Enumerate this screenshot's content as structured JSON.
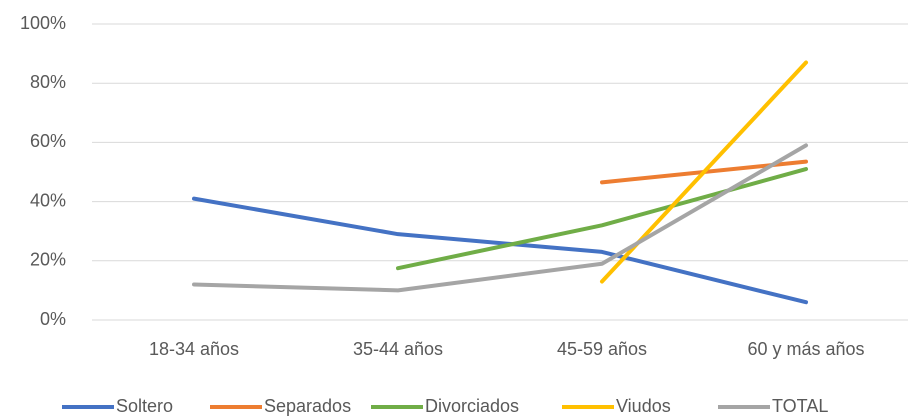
{
  "chart_data": {
    "type": "line",
    "categories": [
      "18-34 años",
      "35-44 años",
      "45-59 años",
      "60 y más años"
    ],
    "series": [
      {
        "name": "Soltero",
        "color": "#4472c4",
        "values": [
          41,
          29,
          23,
          6
        ]
      },
      {
        "name": "Separados",
        "color": "#ed7d31",
        "values": [
          null,
          null,
          46.5,
          53.5
        ]
      },
      {
        "name": "Divorciados",
        "color": "#70ad47",
        "values": [
          null,
          17.5,
          32,
          51
        ]
      },
      {
        "name": "Viudos",
        "color": "#ffc000",
        "values": [
          null,
          null,
          13,
          87
        ]
      },
      {
        "name": "TOTAL",
        "color": "#a5a5a5",
        "values": [
          12,
          10,
          19,
          59
        ]
      }
    ],
    "ylim": [
      0,
      100
    ],
    "yticks": [
      {
        "value": 0,
        "label": "0%"
      },
      {
        "value": 20,
        "label": "20%"
      },
      {
        "value": 40,
        "label": "40%"
      },
      {
        "value": 60,
        "label": "60%"
      },
      {
        "value": 80,
        "label": "80%"
      },
      {
        "value": 100,
        "label": "100%"
      }
    ],
    "grid": true,
    "legend": "bottom"
  }
}
